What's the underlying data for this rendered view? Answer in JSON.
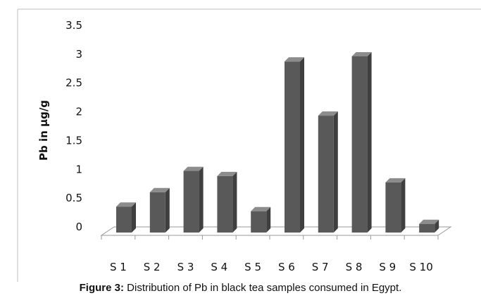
{
  "chart_data": {
    "type": "bar",
    "style": "3d",
    "categories": [
      "S 1",
      "S 2",
      "S 3",
      "S 4",
      "S 5",
      "S 6",
      "S 7",
      "S 8",
      "S 9",
      "S 10"
    ],
    "values": [
      0.45,
      0.7,
      1.07,
      0.98,
      0.37,
      2.97,
      2.03,
      3.06,
      0.87,
      0.15
    ],
    "title": "",
    "xlabel": "",
    "ylabel": "Pb in µg/g",
    "ylim": [
      0,
      3.5
    ],
    "yticks": [
      "0",
      "0.5",
      "1",
      "1.5",
      "2",
      "2.5",
      "3",
      "3.5"
    ],
    "grid": false,
    "legend": "none",
    "bar_color": "#595959"
  },
  "caption": {
    "label": "Figure 3:",
    "text": " Distribution of Pb in black tea samples consumed in Egypt."
  }
}
